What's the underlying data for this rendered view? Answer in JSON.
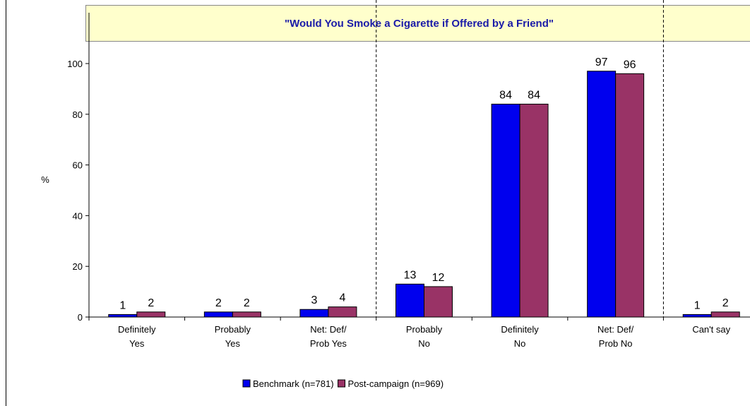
{
  "chart_data": {
    "type": "bar",
    "title": "\"Would You Smoke a Cigarette if Offered by a Friend\"",
    "ylabel": "%",
    "ylim": [
      0,
      100
    ],
    "yticks": [
      0,
      20,
      40,
      60,
      80,
      100
    ],
    "categories": [
      [
        "Definitely",
        "Yes"
      ],
      [
        "Probably",
        "Yes"
      ],
      [
        "Net: Def/",
        "Prob Yes"
      ],
      [
        "Probably",
        "No"
      ],
      [
        "Definitely",
        "No"
      ],
      [
        "Net: Def/",
        "Prob No"
      ],
      [
        "Can't say"
      ]
    ],
    "group_dividers_after": [
      2,
      5
    ],
    "series": [
      {
        "name": "Benchmark (n=781)",
        "color": "#0000ee",
        "values": [
          1,
          2,
          3,
          13,
          84,
          97,
          1
        ]
      },
      {
        "name": "Post-campaign (n=969)",
        "color": "#993366",
        "values": [
          2,
          2,
          4,
          12,
          84,
          96,
          2
        ]
      }
    ],
    "legend_position": "bottom",
    "grid": false
  }
}
